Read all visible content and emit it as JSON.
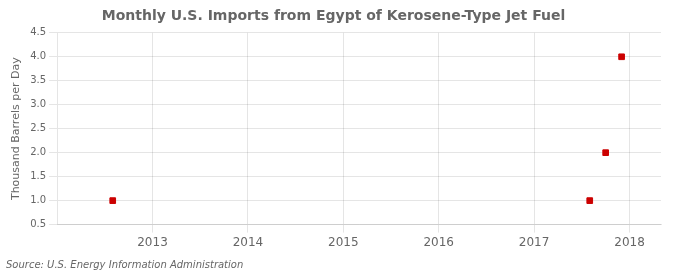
{
  "chart_data": {
    "type": "scatter",
    "title": "Monthly U.S. Imports from Egypt of Kerosene-Type Jet Fuel",
    "ylabel": "Thousand Barrels per Day",
    "source": "Source: U.S. Energy Information Administration",
    "x": [
      2012.583,
      2017.583,
      2017.75,
      2017.917
    ],
    "values": [
      1.0,
      1.0,
      2.0,
      4.0
    ],
    "color": "#cc0000",
    "marker": "square",
    "xlim": [
      2012.0,
      2018.33
    ],
    "ylim": [
      0.5,
      4.5
    ],
    "xticks": [
      2013,
      2014,
      2015,
      2016,
      2017,
      2018
    ],
    "yticks": [
      0.5,
      {
        "value": 1.0,
        "label": "1.0"
      },
      1.5,
      {
        "value": 2.0,
        "label": "2.0"
      },
      2.5,
      {
        "value": 3.0,
        "label": "3.0"
      },
      3.5,
      {
        "value": 4.0,
        "label": "4.0"
      },
      4.5
    ],
    "grid": true
  }
}
